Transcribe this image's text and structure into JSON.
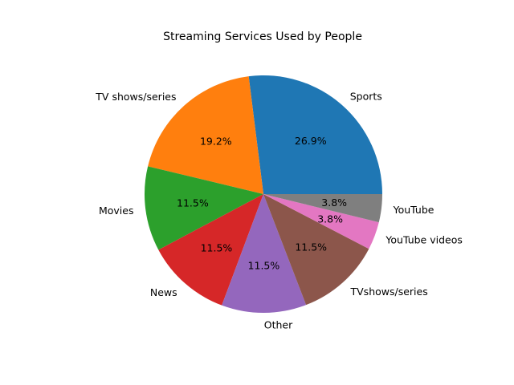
{
  "chart_data": {
    "type": "pie",
    "title": "Streaming Services Used by People",
    "categories": [
      "Sports",
      "TV shows/series",
      "Movies",
      "News",
      "Other",
      "TVshows/series",
      "YouTube videos",
      "YouTube"
    ],
    "values": [
      26.9,
      19.2,
      11.5,
      11.5,
      11.5,
      11.5,
      3.8,
      3.8
    ],
    "percent_labels": [
      "26.9%",
      "19.2%",
      "11.5%",
      "11.5%",
      "11.5%",
      "11.5%",
      "3.8%",
      "3.8%"
    ],
    "colors": [
      "#1f77b4",
      "#ff7f0e",
      "#2ca02c",
      "#d62728",
      "#9467bd",
      "#8c564b",
      "#e377c2",
      "#7f7f7f"
    ],
    "start_angle_deg": 0,
    "direction": "counterclockwise",
    "legend": "none"
  }
}
